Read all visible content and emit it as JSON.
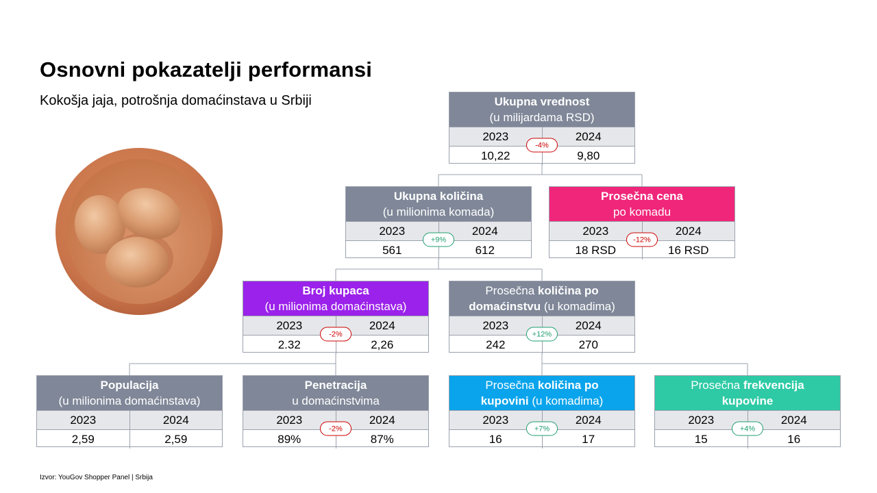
{
  "title": "Osnovni pokazatelji performansi",
  "subtitle": "Kokošja jaja, potrošnja domaćinstava u Srbiji",
  "source": "Izvor: YouGov Shopper Panel | Srbija",
  "colors": {
    "header_gray": "#7f8798",
    "pink": "#f0267a",
    "purple": "#9b22ea",
    "blue": "#0aa4ec",
    "teal": "#2ecaa5",
    "neg_badge": "#cc0000",
    "pos_badge": "#1f9e6f"
  },
  "boxes": {
    "total_value": {
      "line1": "Ukupna vrednost",
      "line2": "(u milijardama RSD)",
      "year1": "2023",
      "year2": "2024",
      "val1": "10,22",
      "val2": "9,80",
      "change": "-4%"
    },
    "total_qty": {
      "line1": "Ukupna količina",
      "line2": "(u milionima komada)",
      "year1": "2023",
      "year2": "2024",
      "val1": "561",
      "val2": "612",
      "change": "+9%"
    },
    "avg_price": {
      "line1": "Prosečna cena",
      "line2": "po komadu",
      "year1": "2023",
      "year2": "2024",
      "val1": "18 RSD",
      "val2": "16 RSD",
      "change": "-12%"
    },
    "buyers": {
      "line1": "Broj kupaca",
      "line2": "(u milionima domaćinstava)",
      "year1": "2023",
      "year2": "2024",
      "val1": "2.32",
      "val2": "2,26",
      "change": "-2%"
    },
    "qty_per_hh": {
      "line1a": "Prosečna ",
      "line1b": "količina po",
      "line2a": "domaćinstvu",
      "line2b": " (u komadima)",
      "year1": "2023",
      "year2": "2024",
      "val1": "242",
      "val2": "270",
      "change": "+12%"
    },
    "population": {
      "line1": "Populacija",
      "line2": "(u milionima domaćinstava)",
      "year1": "2023",
      "year2": "2024",
      "val1": "2,59",
      "val2": "2,59"
    },
    "penetration": {
      "line1": "Penetracija",
      "line2": "u domaćinstvima",
      "year1": "2023",
      "year2": "2024",
      "val1": "89%",
      "val2": "87%",
      "change": "-2%"
    },
    "qty_per_trip": {
      "line1a": "Prosečna ",
      "line1b": "količina po",
      "line2a": "kupovini",
      "line2b": " (u komadima)",
      "year1": "2023",
      "year2": "2024",
      "val1": "16",
      "val2": "17",
      "change": "+7%"
    },
    "frequency": {
      "line1a": "Prosečna ",
      "line1b": "frekvencija",
      "line2": "kupovine",
      "year1": "2023",
      "year2": "2024",
      "val1": "15",
      "val2": "16",
      "change": "+4%"
    }
  }
}
